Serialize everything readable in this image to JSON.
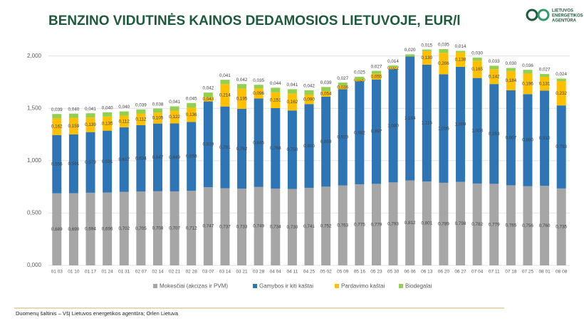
{
  "logo": {
    "lines": [
      "LIETUVOS",
      "ENERGETIKOS",
      "AGENTŪRA"
    ]
  },
  "chart_data": {
    "type": "stacked_bar",
    "title": "BENZINO VIDUTINĖS KAINOS DEDAMOSIOS LIETUVOJE, EUR/l",
    "source": "Duomenų šaltinis – VšĮ Lietuvos energetikos agentūra; Orlen Lietuva",
    "categories": [
      "01 03",
      "01 10",
      "01 17",
      "01 24",
      "01 31",
      "02 07",
      "02 14",
      "02 21",
      "02 28",
      "03 07",
      "03 14",
      "03 21",
      "03 28",
      "04 04",
      "04 11",
      "04 25",
      "05 02",
      "05 09",
      "05 16",
      "05 23",
      "05 30",
      "06 06",
      "06 13",
      "06 20",
      "06 27",
      "07 04",
      "07 11",
      "07 18",
      "07 25",
      "08 01",
      "08 08"
    ],
    "ylim": [
      0,
      2.1
    ],
    "yticks": [
      {
        "value": 0,
        "label": "0,000"
      },
      {
        "value": 0.5,
        "label": "0,500"
      },
      {
        "value": 1,
        "label": "1,000"
      },
      {
        "value": 1.5,
        "label": "1,500"
      },
      {
        "value": 2,
        "label": "2,000"
      }
    ],
    "grid": true,
    "legend": "bottom",
    "series": [
      {
        "name": "Mokesčiai (akcizas ir PVM)",
        "color": "#a6a6a6",
        "values": [
          0.689,
          0.69,
          0.694,
          0.696,
          0.702,
          0.705,
          0.708,
          0.707,
          0.712,
          0.747,
          0.737,
          0.733,
          0.749,
          0.734,
          0.73,
          0.741,
          0.752,
          0.763,
          0.775,
          0.779,
          0.793,
          0.812,
          0.801,
          0.789,
          0.798,
          0.782,
          0.779,
          0.765,
          0.756,
          0.76,
          0.735
        ],
        "value_labels": [
          "0,689",
          "0,690",
          "0,694",
          "0,696",
          "0,702",
          "0,705",
          "0,708",
          "0,707",
          "0,712",
          "0,747",
          "0,737",
          "0,733",
          "0,749",
          "0,734",
          "0,730",
          "0,741",
          "0,752",
          "0,763",
          "0,775",
          "0,779",
          "0,793",
          "0,812",
          "0,801",
          "0,789",
          "0,798",
          "0,782",
          "0,779",
          "0,765",
          "0,756",
          "0,760",
          "0,735"
        ]
      },
      {
        "name": "Gamybos ir kiti kaštai",
        "color": "#2e75b6",
        "values": [
          0.556,
          0.561,
          0.579,
          0.591,
          0.617,
          0.634,
          0.647,
          0.649,
          0.658,
          0.819,
          0.781,
          0.762,
          0.845,
          0.768,
          0.75,
          0.8,
          0.859,
          0.92,
          0.982,
          0.997,
          1.08,
          1.184,
          1.116,
          1.036,
          1.099,
          1.008,
          0.953,
          0.907,
          0.88,
          0.91,
          0.793
        ],
        "value_labels": [
          "0,556",
          "0,561",
          "0,579",
          "0,591",
          "0,617",
          "0,634",
          "0,647",
          "0,649",
          "0,658",
          "0,819",
          "0,781",
          "0,762",
          "0,845",
          "0,768",
          "0,750",
          "0,800",
          "0,859",
          "0,920",
          "0,982",
          "0,997",
          "1,080",
          "1,184",
          "1,116",
          "1,036",
          "1,099",
          "1,008",
          "0,953",
          "0,907",
          "0,880",
          "0,910",
          "0,793"
        ]
      },
      {
        "name": "Pardavimo kaštai",
        "color": "#ffc000",
        "values": [
          0.162,
          0.159,
          0.139,
          0.135,
          0.112,
          0.112,
          0.105,
          0.122,
          0.136,
          0.043,
          0.214,
          0.195,
          0.096,
          0.151,
          0.162,
          0.09,
          0.054,
          0.036,
          0.02,
          0.055,
          0.022,
          null,
          0.13,
          0.206,
          0.138,
          0.165,
          0.142,
          0.184,
          0.196,
          0.131,
          0.232
        ],
        "value_labels": [
          "0,162",
          "0,159",
          "0,139",
          "0,135",
          "0,112",
          "0,112",
          "0,105",
          "0,122",
          "0,136",
          "0,043",
          "0,214",
          "0,195",
          "0,096",
          "0,151",
          "0,162",
          "0,090",
          "0,054",
          "0,036",
          "0,020",
          "0,055",
          "0,022",
          null,
          "0,130",
          "0,206",
          "0,138",
          "0,165",
          "0,142",
          "0,184",
          "0,196",
          "0,131",
          "0,232"
        ]
      },
      {
        "name": "Biodegalai",
        "color": "#92d050",
        "values": [
          0.039,
          0.04,
          0.041,
          0.04,
          0.04,
          0.039,
          0.038,
          0.041,
          0.045,
          0.042,
          0.041,
          0.042,
          0.035,
          0.044,
          0.041,
          0.042,
          0.039,
          0.027,
          0.025,
          0.027,
          0.014,
          0.02,
          0.015,
          0.035,
          0.014,
          0.03,
          0.033,
          0.03,
          0.036,
          0.027,
          0.024
        ],
        "value_labels": [
          "0,039",
          "0,040",
          "0,041",
          "0,040",
          "0,040",
          "0,039",
          "0,038",
          "0,041",
          "0,045",
          "0,042",
          "0,041",
          "0,042",
          "0,035",
          "0,044",
          "0,041",
          "0,042",
          "0,039",
          "0,027",
          "0,025",
          "0,027",
          "0,014",
          "0,020",
          "0,015",
          "0,035",
          "0,014",
          "0,030",
          "0,033",
          "0,030",
          "0,036",
          "0,027",
          "0,024"
        ]
      }
    ]
  }
}
